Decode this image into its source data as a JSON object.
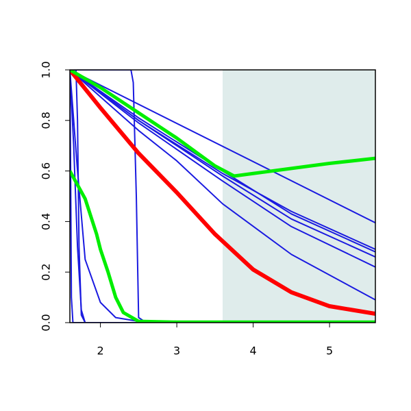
{
  "chart_data": {
    "type": "line",
    "xlim": [
      1.6,
      5.6
    ],
    "ylim": [
      0,
      1
    ],
    "xticks": [
      2,
      3,
      4,
      5
    ],
    "yticks": [
      {
        "value": 0,
        "label": "0.0"
      },
      0.2,
      0.4,
      0.6,
      0.8,
      {
        "value": 1,
        "label": "1.0"
      }
    ],
    "shaded_region": {
      "xmin": 3.6,
      "color": "#dfeceb"
    },
    "series": [
      {
        "color": "#1a1ae0",
        "width": 2,
        "x": [
          1.6,
          5.6
        ],
        "values": [
          1,
          0.395
        ]
      },
      {
        "color": "#1a1ae0",
        "width": 2,
        "x": [
          1.6,
          2.5,
          3.6,
          4.5,
          5.6
        ],
        "values": [
          1,
          0.8,
          0.59,
          0.44,
          0.29
        ]
      },
      {
        "color": "#1a1ae0",
        "width": 2,
        "x": [
          1.6,
          2.5,
          3.6,
          4.5,
          5.6
        ],
        "values": [
          1,
          0.81,
          0.6,
          0.43,
          0.28
        ]
      },
      {
        "color": "#1a1ae0",
        "width": 2,
        "x": [
          1.6,
          2.5,
          3.6,
          4.5,
          5.6
        ],
        "values": [
          1,
          0.8,
          0.58,
          0.41,
          0.26
        ]
      },
      {
        "color": "#1a1ae0",
        "width": 2,
        "x": [
          1.6,
          2.5,
          3.6,
          4.5,
          5.6
        ],
        "values": [
          1,
          0.79,
          0.56,
          0.38,
          0.22
        ]
      },
      {
        "color": "#1a1ae0",
        "width": 2,
        "x": [
          1.6,
          2.5,
          3.0,
          3.6,
          4.5,
          5.6
        ],
        "values": [
          1,
          0.76,
          0.64,
          0.47,
          0.27,
          0.09
        ]
      },
      {
        "color": "#1a1ae0",
        "width": 2,
        "x": [
          1.6,
          2.4,
          2.43,
          2.47,
          2.5,
          2.6,
          5.6
        ],
        "values": [
          1,
          1,
          0.95,
          0.5,
          0.02,
          0,
          0
        ]
      },
      {
        "color": "#1a1ae0",
        "width": 2,
        "x": [
          1.6,
          1.68,
          1.7,
          1.72,
          1.75,
          1.8,
          5.6
        ],
        "values": [
          1,
          1,
          0.8,
          0.3,
          0.03,
          0,
          0
        ]
      },
      {
        "color": "#1a1ae0",
        "width": 2,
        "x": [
          1.6,
          1.7,
          1.8,
          2.0,
          2.2,
          2.5,
          5.6
        ],
        "values": [
          1,
          0.6,
          0.25,
          0.08,
          0.02,
          0.005,
          0
        ]
      },
      {
        "color": "#1a1ae0",
        "width": 2,
        "x": [
          1.6,
          1.65,
          1.7,
          1.75,
          1.8,
          5.6
        ],
        "values": [
          1,
          0.7,
          0.3,
          0.05,
          0,
          0
        ]
      },
      {
        "color": "#1a1ae0",
        "width": 2,
        "x": [
          1.6,
          1.61,
          1.62,
          1.64,
          5.6
        ],
        "values": [
          1,
          0.6,
          0.1,
          0,
          0
        ]
      },
      {
        "color": "#ff0000",
        "width": 6,
        "x": [
          1.6,
          2.0,
          2.5,
          3.0,
          3.5,
          4.0,
          4.5,
          5.0,
          5.6
        ],
        "values": [
          1,
          0.85,
          0.67,
          0.515,
          0.35,
          0.21,
          0.12,
          0.065,
          0.035
        ]
      },
      {
        "color": "#00ee00",
        "width": 5,
        "x": [
          1.6,
          2.0,
          2.5,
          3.0,
          3.5,
          3.75,
          4.0,
          4.5,
          5.0,
          5.6
        ],
        "values": [
          1,
          0.93,
          0.83,
          0.73,
          0.62,
          0.58,
          0.59,
          0.61,
          0.63,
          0.65
        ]
      },
      {
        "color": "#00ee00",
        "width": 5,
        "x": [
          1.6,
          1.8,
          1.95,
          2.0,
          2.1,
          2.2,
          2.3,
          2.5,
          3.0,
          5.6
        ],
        "values": [
          0.6,
          0.49,
          0.35,
          0.29,
          0.2,
          0.1,
          0.04,
          0.005,
          0.002,
          0.002
        ]
      }
    ]
  }
}
